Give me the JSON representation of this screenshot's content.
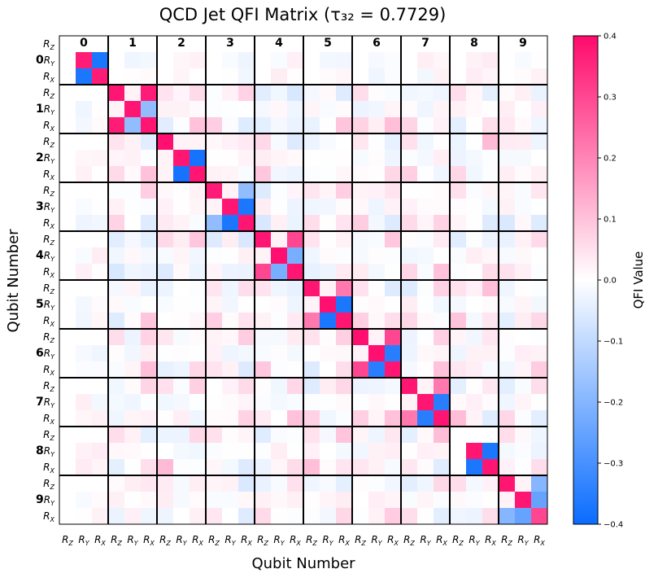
{
  "chart_data": {
    "type": "heatmap",
    "title": "QCD Jet QFI Matrix (τ₃₂ = 0.7729)",
    "xlabel": "Qubit Number",
    "ylabel": "Qubit Number",
    "qubits": [
      "0",
      "1",
      "2",
      "3",
      "4",
      "5",
      "6",
      "7",
      "8",
      "9"
    ],
    "gates": [
      "R_Z",
      "R_Y",
      "R_X"
    ],
    "colorbar": {
      "label": "QFI Value",
      "range": [
        -0.4,
        0.4
      ],
      "ticks": [
        0.4,
        0.3,
        0.2,
        0.1,
        0.0,
        -0.1,
        -0.2,
        -0.3,
        -0.4
      ],
      "tick_labels": [
        "0.4",
        "0.3",
        "0.2",
        "0.1",
        "0.0",
        "−0.1",
        "−0.2",
        "−0.3",
        "−0.4"
      ],
      "colors": {
        "negative": "#0a6cff",
        "zero": "#ffffff",
        "positive": "#ff0a6c"
      }
    },
    "diagonal_blocks": [
      [
        [
          0.0,
          0.0,
          0.0
        ],
        [
          0.0,
          0.37,
          -0.37
        ],
        [
          0.0,
          -0.37,
          0.37
        ]
      ],
      [
        [
          0.38,
          0.02,
          0.37
        ],
        [
          0.02,
          0.38,
          -0.18
        ],
        [
          0.37,
          -0.18,
          0.38
        ]
      ],
      [
        [
          0.39,
          0.02,
          0.02
        ],
        [
          0.02,
          0.38,
          -0.38
        ],
        [
          0.02,
          -0.38,
          0.38
        ]
      ],
      [
        [
          0.37,
          0.02,
          -0.18
        ],
        [
          0.02,
          0.38,
          -0.37
        ],
        [
          -0.18,
          -0.37,
          0.38
        ]
      ],
      [
        [
          0.38,
          0.02,
          0.3
        ],
        [
          0.02,
          0.39,
          -0.22
        ],
        [
          0.3,
          -0.22,
          0.38
        ]
      ],
      [
        [
          0.38,
          0.02,
          0.22
        ],
        [
          0.02,
          0.39,
          -0.37
        ],
        [
          0.22,
          -0.37,
          0.38
        ]
      ],
      [
        [
          0.39,
          0.02,
          0.3
        ],
        [
          0.02,
          0.39,
          -0.35
        ],
        [
          0.3,
          -0.35,
          0.38
        ]
      ],
      [
        [
          0.38,
          0.02,
          0.22
        ],
        [
          0.02,
          0.38,
          -0.35
        ],
        [
          0.22,
          -0.35,
          0.38
        ]
      ],
      [
        [
          0.0,
          0.0,
          0.0
        ],
        [
          0.0,
          0.38,
          -0.37
        ],
        [
          0.0,
          -0.37,
          0.38
        ]
      ],
      [
        [
          0.38,
          0.02,
          -0.2
        ],
        [
          0.02,
          0.38,
          -0.25
        ],
        [
          -0.2,
          -0.25,
          0.3
        ]
      ]
    ],
    "offdiag_rz_rx_strength": [
      0.0,
      0.06,
      0.06,
      0.06,
      0.09,
      0.09,
      0.09,
      0.06,
      0.1,
      0.08
    ],
    "grid": false
  }
}
